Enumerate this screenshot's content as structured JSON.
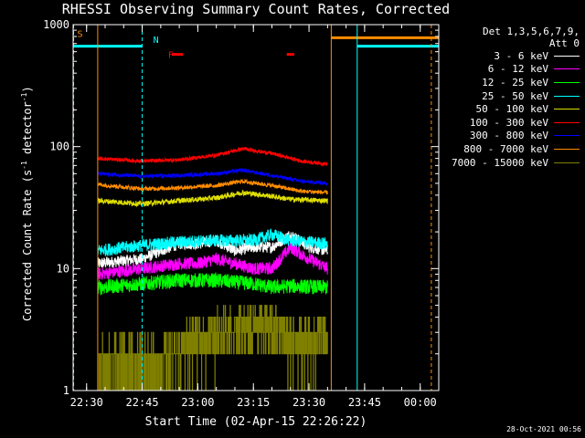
{
  "chart_data": {
    "type": "line",
    "title": "RHESSI Observing Summary Count Rates, Corrected",
    "xlabel": "Start Time (02-Apr-15 22:26:22)",
    "ylabel": "Corrected Count Rate (s",
    "ylabel_sup1": "-1",
    "ylabel_mid": " detector",
    "ylabel_sup2": "-1",
    "ylabel_end": ")",
    "y_scale": "log",
    "ylim": [
      1,
      1000
    ],
    "xlim": [
      "22:26:22",
      "00:05:00"
    ],
    "x_ticks": [
      "22:30",
      "22:45",
      "23:00",
      "23:15",
      "23:30",
      "23:45",
      "00:00"
    ],
    "y_ticks": [
      "1",
      "10",
      "100",
      "1000"
    ],
    "grid": false,
    "legend_position": "right",
    "legend_header": [
      "Det 1,3,5,6,7,9,",
      "Att 0"
    ],
    "timestamp": "28-Oct-2021 00:56",
    "series": [
      {
        "name": "3 - 6 keV",
        "color": "#ffffff",
        "range": [
          "22:33",
          "23:35"
        ],
        "anchors": [
          [
            "22:33",
            11
          ],
          [
            "22:45",
            12
          ],
          [
            "22:50",
            14
          ],
          [
            "22:55",
            16
          ],
          [
            "23:00",
            16
          ],
          [
            "23:05",
            17
          ],
          [
            "23:10",
            14
          ],
          [
            "23:15",
            15
          ],
          [
            "23:20",
            15
          ],
          [
            "23:25",
            19
          ],
          [
            "23:30",
            15
          ],
          [
            "23:35",
            14
          ]
        ],
        "noise": 0.11
      },
      {
        "name": "6 - 12 keV",
        "color": "#ff00ff",
        "range": [
          "22:33",
          "23:35"
        ],
        "anchors": [
          [
            "22:33",
            9
          ],
          [
            "22:45",
            10
          ],
          [
            "22:50",
            10.5
          ],
          [
            "22:55",
            11
          ],
          [
            "23:00",
            11
          ],
          [
            "23:05",
            12
          ],
          [
            "23:10",
            11
          ],
          [
            "23:15",
            10
          ],
          [
            "23:20",
            10
          ],
          [
            "23:25",
            15
          ],
          [
            "23:28",
            13
          ],
          [
            "23:35",
            10
          ]
        ],
        "noise": 0.12
      },
      {
        "name": "12 - 25 keV",
        "color": "#00ff00",
        "range": [
          "22:33",
          "23:35"
        ],
        "anchors": [
          [
            "22:33",
            7
          ],
          [
            "22:45",
            7.5
          ],
          [
            "22:55",
            8
          ],
          [
            "23:05",
            8
          ],
          [
            "23:15",
            7.5
          ],
          [
            "23:20",
            7
          ],
          [
            "23:25",
            7.2
          ],
          [
            "23:35",
            7
          ]
        ],
        "noise": 0.14
      },
      {
        "name": "25 - 50 keV",
        "color": "#00ffff",
        "range": [
          "22:33",
          "23:35"
        ],
        "anchors": [
          [
            "22:33",
            14
          ],
          [
            "22:45",
            15.5
          ],
          [
            "22:55",
            16.5
          ],
          [
            "23:05",
            17
          ],
          [
            "23:15",
            17
          ],
          [
            "23:20",
            19
          ],
          [
            "23:25",
            17
          ],
          [
            "23:35",
            16
          ]
        ],
        "noise": 0.12
      },
      {
        "name": "50 - 100 keV",
        "color": "#dddd00",
        "range": [
          "22:33",
          "23:35"
        ],
        "anchors": [
          [
            "22:33",
            36
          ],
          [
            "22:45",
            34
          ],
          [
            "22:55",
            36
          ],
          [
            "23:05",
            38
          ],
          [
            "23:12",
            42
          ],
          [
            "23:18",
            40
          ],
          [
            "23:25",
            37
          ],
          [
            "23:35",
            36
          ]
        ],
        "noise": 0.05
      },
      {
        "name": "100 - 300 keV",
        "color": "#ff0000",
        "range": [
          "22:33",
          "23:35"
        ],
        "anchors": [
          [
            "22:33",
            80
          ],
          [
            "22:45",
            76
          ],
          [
            "22:55",
            78
          ],
          [
            "23:05",
            85
          ],
          [
            "23:12",
            96
          ],
          [
            "23:20",
            88
          ],
          [
            "23:28",
            76
          ],
          [
            "23:35",
            72
          ]
        ],
        "noise": 0.035
      },
      {
        "name": "300 - 800 keV",
        "color": "#0000ff",
        "range": [
          "22:33",
          "23:35"
        ],
        "anchors": [
          [
            "22:33",
            60
          ],
          [
            "22:45",
            57
          ],
          [
            "22:55",
            58
          ],
          [
            "23:05",
            60
          ],
          [
            "23:12",
            64
          ],
          [
            "23:20",
            58
          ],
          [
            "23:28",
            52
          ],
          [
            "23:35",
            50
          ]
        ],
        "noise": 0.035
      },
      {
        "name": "800 - 7000 keV",
        "color": "#ff8c00",
        "range": [
          "22:33",
          "23:35"
        ],
        "anchors": [
          [
            "22:33",
            49
          ],
          [
            "22:45",
            45
          ],
          [
            "22:55",
            46
          ],
          [
            "23:05",
            48
          ],
          [
            "23:12",
            52
          ],
          [
            "23:20",
            48
          ],
          [
            "23:28",
            43
          ],
          [
            "23:35",
            42
          ]
        ],
        "noise": 0.04
      },
      {
        "name": "7000 - 15000 keV",
        "color": "#808000",
        "range": [
          "22:33",
          "23:35"
        ],
        "levels": [
          1,
          2,
          3,
          4,
          5
        ],
        "anchors": [
          [
            "22:33",
            1.5
          ],
          [
            "22:50",
            1.6
          ],
          [
            "22:55",
            2.2
          ],
          [
            "23:05",
            3
          ],
          [
            "23:20",
            3.5
          ],
          [
            "23:25",
            2.5
          ],
          [
            "23:35",
            2.8
          ]
        ],
        "noise": 0.35
      }
    ],
    "flags": [
      {
        "label": "S",
        "color": "#ff8c00",
        "at": "22:26:30",
        "level": 850
      },
      {
        "label": "N",
        "color": "#00ffff",
        "at": "22:47",
        "level": 760
      },
      {
        "label": "F",
        "color": "#ff0000",
        "at": "22:51",
        "level": 570
      }
    ],
    "flag_segments": [
      {
        "color": "#00ffff",
        "from": "22:26:22",
        "to": "22:45",
        "level": 665
      },
      {
        "color": "#ff8c00",
        "from": "23:36",
        "to": "00:05",
        "level": 780
      },
      {
        "color": "#00ffff",
        "from": "23:43",
        "to": "00:05",
        "level": 665
      },
      {
        "color": "#ff0000",
        "from": "22:53",
        "to": "22:56",
        "level": 570
      },
      {
        "color": "#ff0000",
        "from": "23:24",
        "to": "23:26",
        "level": 570
      }
    ],
    "markers": [
      {
        "color": "#00ffff",
        "style": "dashed",
        "at": "22:26:30"
      },
      {
        "color": "#00ffff",
        "style": "dashed",
        "at": "22:45"
      },
      {
        "color": "#ff8c00",
        "style": "solid",
        "at": "22:33"
      },
      {
        "color": "#ff8c00",
        "style": "solid",
        "at": "23:36"
      },
      {
        "color": "#00ffff",
        "style": "solid",
        "at": "23:43"
      },
      {
        "color": "#ff8c00",
        "style": "dashed",
        "at": "00:03"
      }
    ]
  }
}
